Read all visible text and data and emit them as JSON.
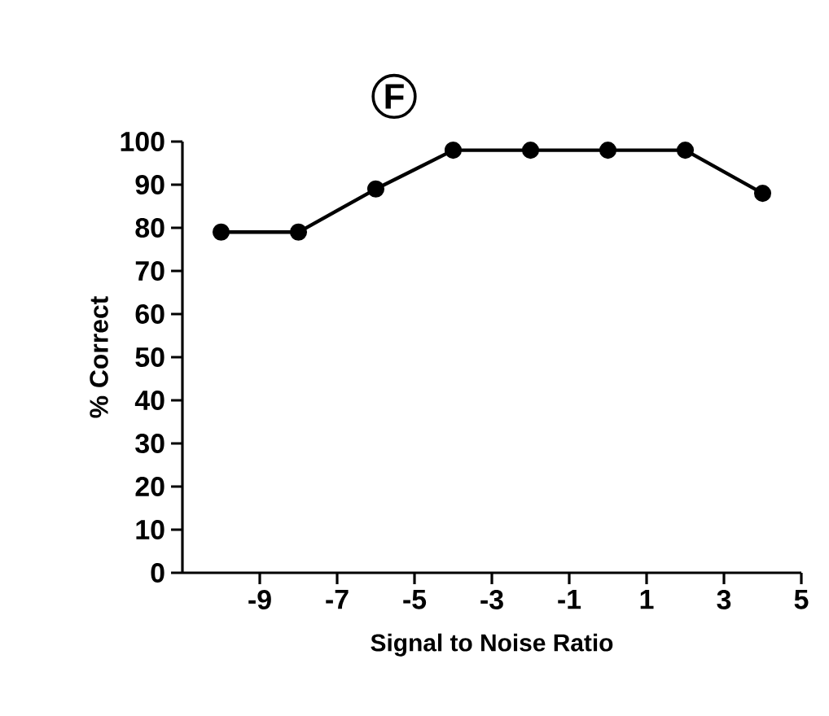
{
  "chart_data": {
    "type": "line",
    "title": "F",
    "xlabel": "Signal to Noise Ratio",
    "ylabel": "% Correct",
    "x": [
      -10,
      -8,
      -6,
      -4,
      -2,
      0,
      2,
      4
    ],
    "series": [
      {
        "color": "#000000",
        "values": [
          79,
          79,
          89,
          98,
          98,
          98,
          98,
          88
        ]
      }
    ],
    "xlim": [
      -11,
      5
    ],
    "xticks": [
      -9,
      -7,
      -5,
      -3,
      -1,
      1,
      3,
      5
    ],
    "ylim": [
      0,
      100
    ],
    "yticks": [
      0,
      10,
      20,
      30,
      40,
      50,
      60,
      70,
      80,
      90,
      100
    ],
    "marker": "circle",
    "line_style": "solid"
  }
}
